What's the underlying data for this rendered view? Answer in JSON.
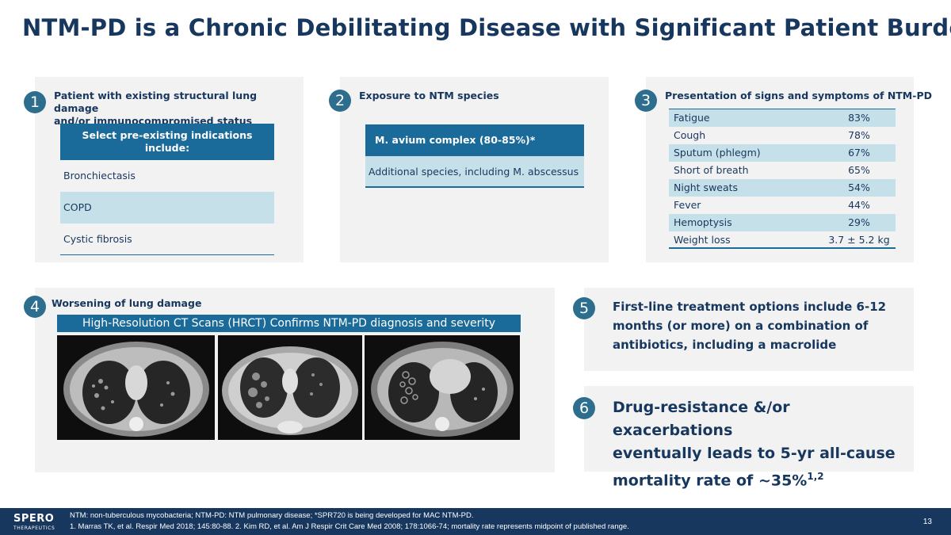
{
  "title": "NTM-PD is a Chronic Debilitating Disease with Significant Patient Burden",
  "panel1": {
    "number": "1",
    "title_line1": "Patient with existing structural lung damage",
    "title_line2": "and/or immunocompromised status",
    "header_line1": "Select pre-existing indications",
    "header_line2": "include:",
    "items": [
      "Bronchiectasis",
      "COPD",
      "Cystic fibrosis"
    ]
  },
  "panel2": {
    "number": "2",
    "title": "Exposure to NTM species",
    "header": "M. avium complex (80-85%)*",
    "row": "Additional species, including M. abscessus"
  },
  "panel3": {
    "number": "3",
    "title": "Presentation of signs and symptoms of NTM-PD",
    "rows": [
      {
        "name": "Fatigue",
        "value": "83%"
      },
      {
        "name": "Cough",
        "value": "78%"
      },
      {
        "name": "Sputum (phlegm)",
        "value": "67%"
      },
      {
        "name": "Short of breath",
        "value": "65%"
      },
      {
        "name": "Night sweats",
        "value": "54%"
      },
      {
        "name": "Fever",
        "value": "44%"
      },
      {
        "name": "Hemoptysis",
        "value": "29%"
      },
      {
        "name": "Weight loss",
        "value": "3.7 ± 5.2 kg"
      }
    ]
  },
  "panel4": {
    "number": "4",
    "title": "Worsening of lung damage",
    "banner": "High-Resolution CT Scans (HRCT) Confirms NTM-PD diagnosis and severity"
  },
  "panel5": {
    "number": "5",
    "line1": "First-line treatment options include 6-12",
    "line2": "months (or more) on a combination of",
    "line3": "antibiotics, including a macrolide"
  },
  "panel6": {
    "number": "6",
    "line1": "Drug-resistance &/or exacerbations",
    "line2": "eventually leads to 5-yr all-cause",
    "line3": "mortality rate of ~35%",
    "superscript": "1,2"
  },
  "footer": {
    "logo": "SPERO",
    "logo_sub": "THERAPEUTICS",
    "note1": "NTM: non-tuberculous mycobacteria; NTM-PD: NTM pulmonary disease; *SPR720 is being developed for MAC NTM-PD.",
    "note2": "1. Marras TK, et al. Respir Med 2018; 145:80-88. 2. Kim RD, et al. Am J Respir Crit Care Med 2008; 178:1066-74; mortality rate represents midpoint of published range.",
    "page": "13"
  },
  "colors": {
    "navy": "#17375e",
    "accent_blue": "#1a6a9a",
    "circle": "#2d6e8e",
    "light_blue": "#c6e0ea",
    "panel_bg": "#f2f2f2"
  }
}
